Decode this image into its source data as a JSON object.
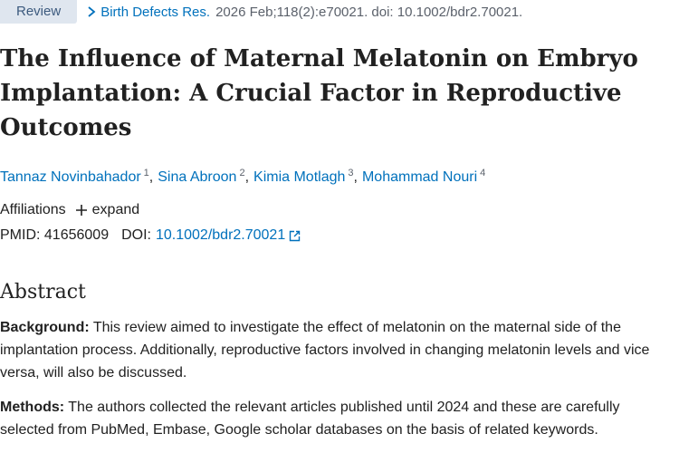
{
  "header": {
    "badge": "Review",
    "journal": "Birth Defects Res.",
    "citation": "2026 Feb;118(2):e70021. doi: 10.1002/bdr2.70021."
  },
  "title": "The Influence of Maternal Melatonin on Embryo Implantation: A Crucial Factor in Reproductive Outcomes",
  "authors": [
    {
      "name": "Tannaz Novinbahador",
      "aff": "1"
    },
    {
      "name": "Sina Abroon",
      "aff": "2"
    },
    {
      "name": "Kimia Motlagh",
      "aff": "3"
    },
    {
      "name": "Mohammad Nouri",
      "aff": "4"
    }
  ],
  "affiliations": {
    "label": "Affiliations",
    "expand_label": "expand"
  },
  "identifiers": {
    "pmid_label": "PMID:",
    "pmid": "41656009",
    "doi_label": "DOI:",
    "doi": "10.1002/bdr2.70021"
  },
  "abstract": {
    "heading": "Abstract",
    "sections": [
      {
        "label": "Background:",
        "text": "This review aimed to investigate the effect of melatonin on the maternal side of the implantation process. Additionally, reproductive factors involved in changing melatonin levels and vice versa, will also be discussed."
      },
      {
        "label": "Methods:",
        "text": "The authors collected the relevant articles published until 2024 and these are carefully selected from PubMed, Embase, Google scholar databases on the basis of related keywords."
      }
    ]
  },
  "colors": {
    "link": "#0071bc",
    "badge_bg": "#dfe6ef"
  }
}
